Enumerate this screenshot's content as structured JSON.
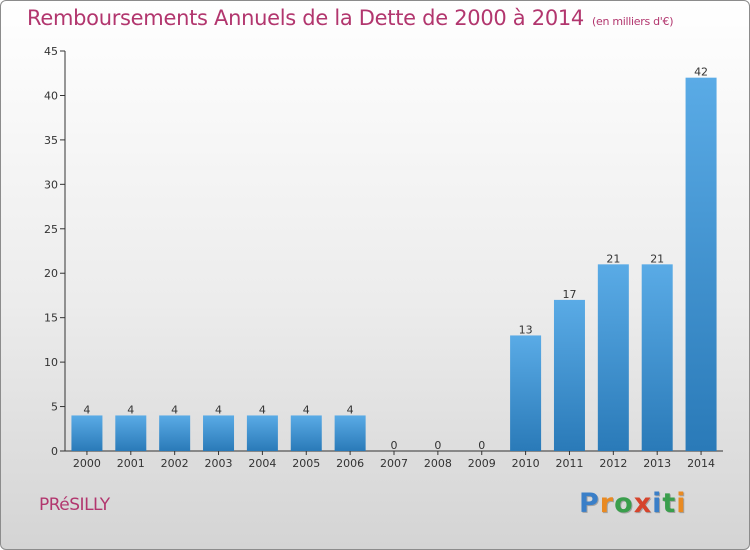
{
  "title": "Remboursements Annuels de la Dette de 2000 à 2014",
  "subtitle": "(en milliers d'€)",
  "commune": "PRéSILLY",
  "brand": {
    "letters": [
      "P",
      "r",
      "o",
      "x",
      "i",
      "t",
      "i"
    ],
    "colors": [
      "#3a7fc8",
      "#e98a22",
      "#3a9e4c",
      "#d6442c",
      "#3a7fc8",
      "#3a9e4c",
      "#e98a22"
    ]
  },
  "colors": {
    "title": "#b2366e",
    "bar_top": "#5aabe6",
    "bar_bottom": "#2a7ab8",
    "axis": "#333333",
    "grid": "#999999"
  },
  "chart_data": {
    "type": "bar",
    "categories": [
      "2000",
      "2001",
      "2002",
      "2003",
      "2004",
      "2005",
      "2006",
      "2007",
      "2008",
      "2009",
      "2010",
      "2011",
      "2012",
      "2013",
      "2014"
    ],
    "values": [
      4,
      4,
      4,
      4,
      4,
      4,
      4,
      0,
      0,
      0,
      13,
      17,
      21,
      21,
      42
    ],
    "data_labels": [
      "4",
      "4",
      "4",
      "4",
      "4",
      "4",
      "4",
      "0",
      "0",
      "0",
      "13",
      "17",
      "21",
      "21",
      "42"
    ],
    "ylim": [
      0,
      45
    ],
    "yticks": [
      0,
      5,
      10,
      15,
      20,
      25,
      30,
      35,
      40,
      45
    ],
    "xlabel": "",
    "ylabel": "",
    "grid": false,
    "legend": "none"
  }
}
